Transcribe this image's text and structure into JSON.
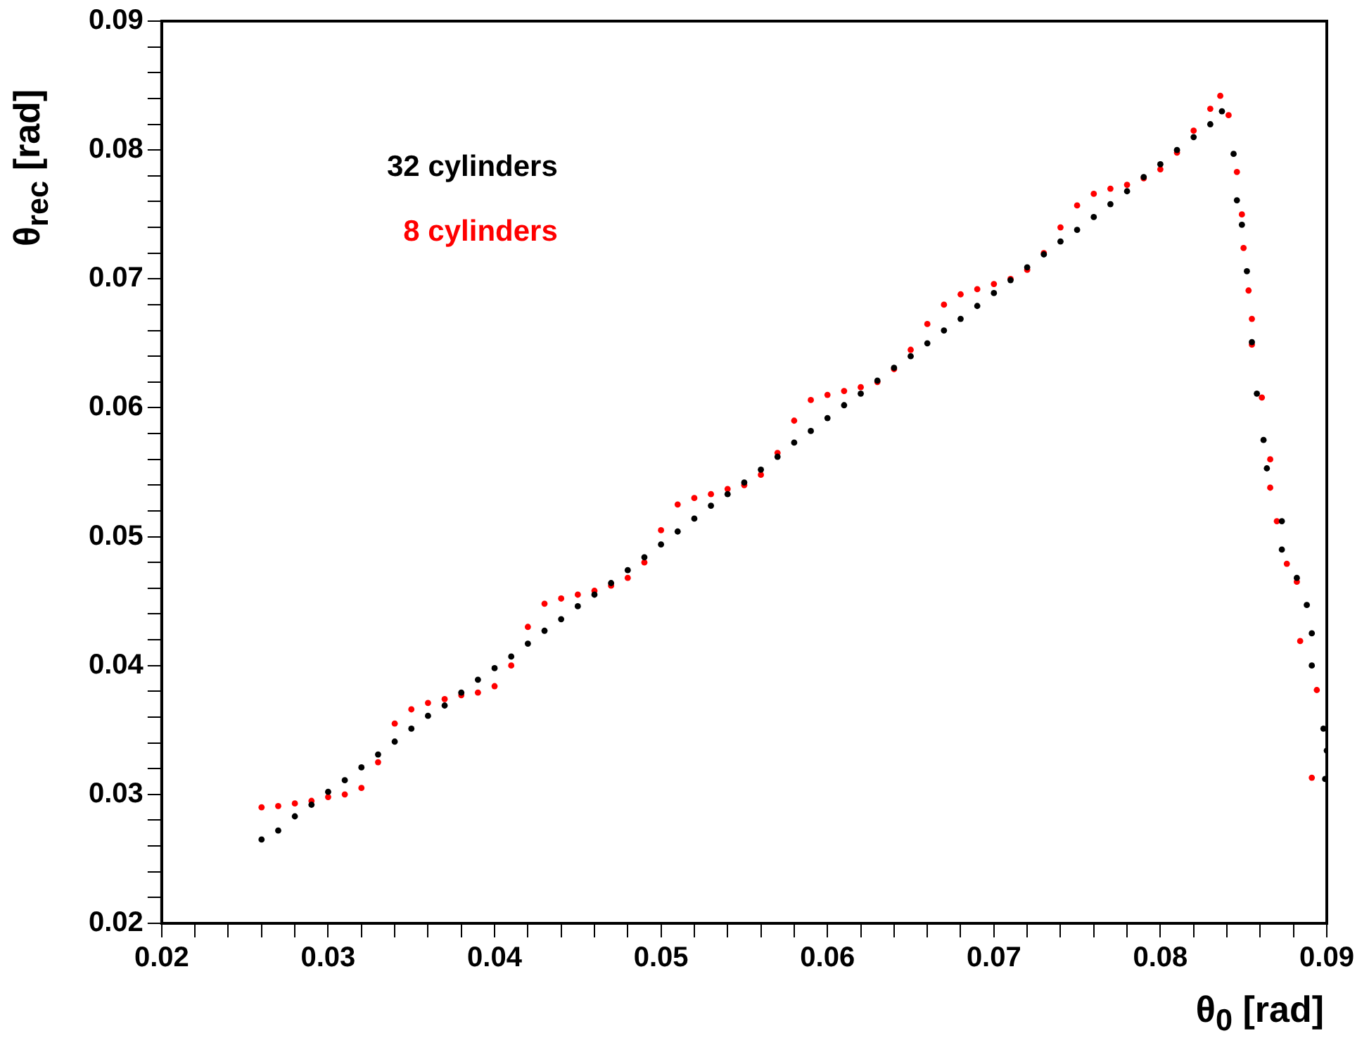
{
  "chart_data": {
    "type": "scatter",
    "xlabel": "θ$_{0}$ [rad]",
    "ylabel": "θ$_{rec}$ [rad]",
    "xlim": [
      0.02,
      0.09
    ],
    "ylim": [
      0.02,
      0.09
    ],
    "xticks": [
      0.02,
      {
        "value": 0.022,
        "label": null
      },
      {
        "value": 0.024,
        "label": null
      },
      {
        "value": 0.026,
        "label": null
      },
      {
        "value": 0.028,
        "label": null
      },
      0.03,
      {
        "value": 0.032,
        "label": null
      },
      {
        "value": 0.034,
        "label": null
      },
      {
        "value": 0.036,
        "label": null
      },
      {
        "value": 0.038,
        "label": null
      },
      0.04,
      {
        "value": 0.042,
        "label": null
      },
      {
        "value": 0.044,
        "label": null
      },
      {
        "value": 0.046,
        "label": null
      },
      {
        "value": 0.048,
        "label": null
      },
      0.05,
      {
        "value": 0.052,
        "label": null
      },
      {
        "value": 0.054,
        "label": null
      },
      {
        "value": 0.056,
        "label": null
      },
      {
        "value": 0.058,
        "label": null
      },
      0.06,
      {
        "value": 0.062,
        "label": null
      },
      {
        "value": 0.064,
        "label": null
      },
      {
        "value": 0.066,
        "label": null
      },
      {
        "value": 0.068,
        "label": null
      },
      0.07,
      {
        "value": 0.072,
        "label": null
      },
      {
        "value": 0.074,
        "label": null
      },
      {
        "value": 0.076,
        "label": null
      },
      {
        "value": 0.078,
        "label": null
      },
      0.08,
      {
        "value": 0.082,
        "label": null
      },
      {
        "value": 0.084,
        "label": null
      },
      {
        "value": 0.086,
        "label": null
      },
      {
        "value": 0.088,
        "label": null
      },
      0.09
    ],
    "yticks": [
      0.02,
      {
        "value": 0.022,
        "label": null
      },
      {
        "value": 0.024,
        "label": null
      },
      {
        "value": 0.026,
        "label": null
      },
      {
        "value": 0.028,
        "label": null
      },
      0.03,
      {
        "value": 0.032,
        "label": null
      },
      {
        "value": 0.034,
        "label": null
      },
      {
        "value": 0.036,
        "label": null
      },
      {
        "value": 0.038,
        "label": null
      },
      0.04,
      {
        "value": 0.042,
        "label": null
      },
      {
        "value": 0.044,
        "label": null
      },
      {
        "value": 0.046,
        "label": null
      },
      {
        "value": 0.048,
        "label": null
      },
      0.05,
      {
        "value": 0.052,
        "label": null
      },
      {
        "value": 0.054,
        "label": null
      },
      {
        "value": 0.056,
        "label": null
      },
      {
        "value": 0.058,
        "label": null
      },
      0.06,
      {
        "value": 0.062,
        "label": null
      },
      {
        "value": 0.064,
        "label": null
      },
      {
        "value": 0.066,
        "label": null
      },
      {
        "value": 0.068,
        "label": null
      },
      0.07,
      {
        "value": 0.072,
        "label": null
      },
      {
        "value": 0.074,
        "label": null
      },
      {
        "value": 0.076,
        "label": null
      },
      {
        "value": 0.078,
        "label": null
      },
      0.08,
      {
        "value": 0.082,
        "label": null
      },
      {
        "value": 0.084,
        "label": null
      },
      {
        "value": 0.086,
        "label": null
      },
      {
        "value": 0.088,
        "label": null
      },
      0.09
    ],
    "grid": false,
    "legend": "top left",
    "marker": "circle",
    "series": [
      {
        "name": "32 cylinders",
        "color": "#000000",
        "x": [
          0.026,
          0.027,
          0.028,
          0.029,
          0.03,
          0.031,
          0.032,
          0.033,
          0.034,
          0.035,
          0.036,
          0.037,
          0.038,
          0.039,
          0.04,
          0.041,
          0.042,
          0.043,
          0.044,
          0.045,
          0.046,
          0.047,
          0.048,
          0.049,
          0.05,
          0.051,
          0.052,
          0.053,
          0.054,
          0.055,
          0.056,
          0.057,
          0.058,
          0.059,
          0.06,
          0.061,
          0.062,
          0.063,
          0.064,
          0.065,
          0.066,
          0.067,
          0.068,
          0.069,
          0.07,
          0.071,
          0.072,
          0.073,
          0.074,
          0.075,
          0.076,
          0.077,
          0.078,
          0.079,
          0.08,
          0.081,
          0.082,
          0.083,
          0.0837,
          0.0844,
          0.0846,
          0.0849,
          0.0852,
          0.0855,
          0.0858,
          0.0862,
          0.0864,
          0.0873,
          0.0873,
          0.0882,
          0.0888,
          0.0891,
          0.0891,
          0.0898,
          0.09,
          0.0899
        ],
        "values": [
          0.0265,
          0.0272,
          0.0283,
          0.0292,
          0.0302,
          0.0311,
          0.0321,
          0.0331,
          0.0341,
          0.0351,
          0.0361,
          0.0369,
          0.0379,
          0.0389,
          0.0398,
          0.0407,
          0.0417,
          0.0427,
          0.0436,
          0.0446,
          0.0455,
          0.0464,
          0.0474,
          0.0484,
          0.0494,
          0.0504,
          0.0514,
          0.0524,
          0.0533,
          0.0542,
          0.0552,
          0.0562,
          0.0573,
          0.0582,
          0.0592,
          0.0602,
          0.0611,
          0.0621,
          0.0631,
          0.064,
          0.065,
          0.066,
          0.0669,
          0.0679,
          0.0689,
          0.0699,
          0.0709,
          0.0719,
          0.0729,
          0.0738,
          0.0748,
          0.0758,
          0.0768,
          0.0779,
          0.0789,
          0.08,
          0.081,
          0.082,
          0.083,
          0.0797,
          0.0761,
          0.0742,
          0.0706,
          0.0651,
          0.0611,
          0.0575,
          0.0553,
          0.0512,
          0.049,
          0.0468,
          0.0447,
          0.0425,
          0.04,
          0.0351,
          0.0334,
          0.0312
        ]
      },
      {
        "name": "8 cylinders",
        "color": "#ff0000",
        "x": [
          0.026,
          0.027,
          0.028,
          0.029,
          0.03,
          0.031,
          0.032,
          0.033,
          0.034,
          0.035,
          0.036,
          0.037,
          0.038,
          0.039,
          0.04,
          0.041,
          0.042,
          0.043,
          0.044,
          0.045,
          0.046,
          0.047,
          0.048,
          0.049,
          0.05,
          0.051,
          0.052,
          0.053,
          0.054,
          0.055,
          0.056,
          0.057,
          0.058,
          0.059,
          0.06,
          0.061,
          0.062,
          0.063,
          0.064,
          0.065,
          0.066,
          0.067,
          0.068,
          0.069,
          0.07,
          0.071,
          0.072,
          0.073,
          0.074,
          0.075,
          0.076,
          0.077,
          0.078,
          0.079,
          0.08,
          0.081,
          0.082,
          0.083,
          0.0836,
          0.0841,
          0.0846,
          0.0849,
          0.085,
          0.0853,
          0.0855,
          0.0855,
          0.0861,
          0.0866,
          0.0866,
          0.087,
          0.0876,
          0.0882,
          0.0884,
          0.0894,
          0.0891
        ],
        "values": [
          0.029,
          0.0291,
          0.0293,
          0.0295,
          0.0298,
          0.03,
          0.0305,
          0.0325,
          0.0355,
          0.0366,
          0.0371,
          0.0374,
          0.0377,
          0.0379,
          0.0384,
          0.04,
          0.043,
          0.0448,
          0.0452,
          0.0455,
          0.0458,
          0.0462,
          0.0468,
          0.048,
          0.0505,
          0.0525,
          0.053,
          0.0533,
          0.0537,
          0.054,
          0.0548,
          0.0565,
          0.059,
          0.0606,
          0.061,
          0.0613,
          0.0616,
          0.062,
          0.063,
          0.0645,
          0.0665,
          0.068,
          0.0688,
          0.0692,
          0.0696,
          0.07,
          0.0707,
          0.072,
          0.074,
          0.0757,
          0.0766,
          0.077,
          0.0773,
          0.0778,
          0.0785,
          0.0798,
          0.0815,
          0.0832,
          0.0842,
          0.0827,
          0.0783,
          0.075,
          0.0724,
          0.0691,
          0.0669,
          0.0649,
          0.0608,
          0.056,
          0.0538,
          0.0512,
          0.0479,
          0.0465,
          0.0419,
          0.0381,
          0.0313
        ]
      }
    ]
  }
}
